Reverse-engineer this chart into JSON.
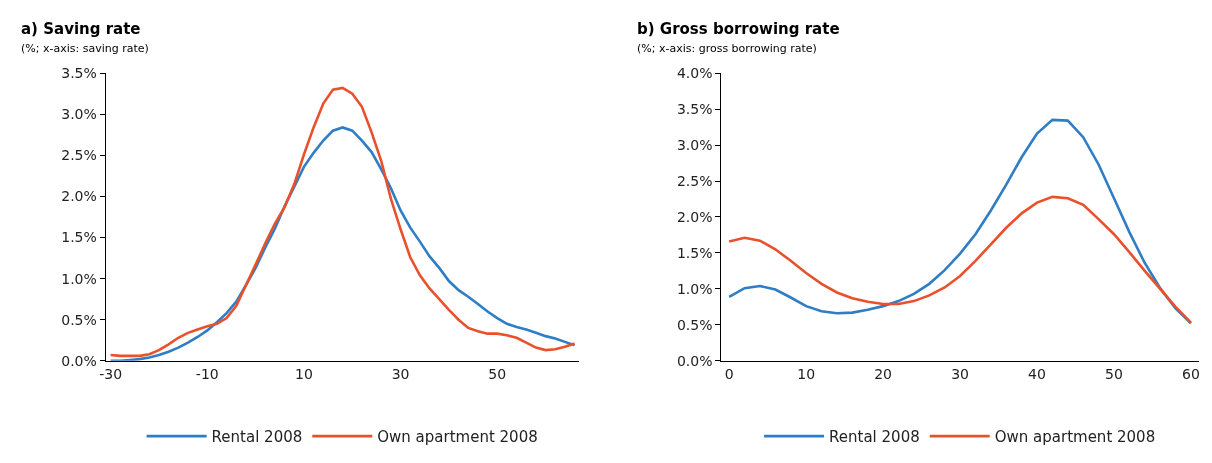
{
  "chart_data": [
    {
      "type": "line",
      "title": "a) Saving rate",
      "subtitle": "(%; x-axis: saving rate)",
      "x": [
        -30,
        -28,
        -26,
        -24,
        -22,
        -20,
        -18,
        -16,
        -14,
        -12,
        -10,
        -8,
        -6,
        -4,
        -2,
        0,
        2,
        4,
        6,
        8,
        10,
        12,
        14,
        16,
        18,
        20,
        22,
        24,
        26,
        28,
        30,
        32,
        34,
        36,
        38,
        40,
        42,
        44,
        46,
        48,
        50,
        52,
        54,
        56,
        58,
        60,
        62,
        64,
        66
      ],
      "series": [
        {
          "name": "Rental 2008",
          "color": "#2f7dc4",
          "values": [
            0.0,
            0.0,
            0.01,
            0.02,
            0.04,
            0.07,
            0.11,
            0.16,
            0.22,
            0.29,
            0.37,
            0.47,
            0.58,
            0.72,
            0.92,
            1.13,
            1.38,
            1.61,
            1.88,
            2.12,
            2.36,
            2.53,
            2.68,
            2.8,
            2.84,
            2.8,
            2.68,
            2.54,
            2.33,
            2.1,
            1.83,
            1.62,
            1.45,
            1.27,
            1.13,
            0.97,
            0.86,
            0.78,
            0.69,
            0.6,
            0.52,
            0.45,
            0.41,
            0.38,
            0.34,
            0.3,
            0.27,
            0.23,
            0.19
          ]
        },
        {
          "name": "Own apartment 2008",
          "color": "#e9502c",
          "values": [
            0.07,
            0.06,
            0.06,
            0.06,
            0.08,
            0.13,
            0.2,
            0.28,
            0.34,
            0.38,
            0.42,
            0.45,
            0.52,
            0.67,
            0.92,
            1.17,
            1.43,
            1.67,
            1.87,
            2.15,
            2.51,
            2.84,
            3.13,
            3.3,
            3.32,
            3.25,
            3.09,
            2.78,
            2.43,
            1.97,
            1.6,
            1.26,
            1.04,
            0.88,
            0.75,
            0.62,
            0.5,
            0.4,
            0.36,
            0.33,
            0.33,
            0.31,
            0.28,
            0.22,
            0.16,
            0.13,
            0.14,
            0.17,
            0.21
          ]
        }
      ],
      "xlim": [
        -31,
        67
      ],
      "xticks": [
        -30,
        -10,
        10,
        30,
        50
      ],
      "ylim": [
        0,
        3.5
      ],
      "yticks": [
        {
          "value": 0,
          "label": "0.0%"
        },
        {
          "value": 0.5,
          "label": "0.5%"
        },
        {
          "value": 1,
          "label": "1.0%"
        },
        {
          "value": 1.5,
          "label": "1.5%"
        },
        {
          "value": 2,
          "label": "2.0%"
        },
        {
          "value": 2.5,
          "label": "2.5%"
        },
        {
          "value": 3,
          "label": "3.0%"
        },
        {
          "value": 3.5,
          "label": "3.5%"
        }
      ],
      "legend": "bottom",
      "marker": "none",
      "line_style": "solid"
    },
    {
      "type": "line",
      "title": "b) Gross borrowing rate",
      "subtitle": "(%; x-axis: gross borrowing rate)",
      "x": [
        0,
        2,
        4,
        6,
        8,
        10,
        12,
        14,
        16,
        18,
        20,
        22,
        24,
        26,
        28,
        30,
        32,
        34,
        36,
        38,
        40,
        42,
        44,
        46,
        48,
        50,
        52,
        54,
        56,
        58,
        60
      ],
      "series": [
        {
          "name": "Rental 2008",
          "color": "#2f7dc4",
          "values": [
            0.89,
            1.01,
            1.04,
            0.99,
            0.88,
            0.76,
            0.69,
            0.66,
            0.67,
            0.71,
            0.76,
            0.83,
            0.93,
            1.07,
            1.26,
            1.49,
            1.76,
            2.09,
            2.45,
            2.83,
            3.16,
            3.35,
            3.34,
            3.11,
            2.73,
            2.26,
            1.79,
            1.36,
            1.01,
            0.73,
            0.52
          ]
        },
        {
          "name": "Own apartment 2008",
          "color": "#e9502c",
          "values": [
            1.66,
            1.71,
            1.67,
            1.55,
            1.39,
            1.22,
            1.07,
            0.95,
            0.87,
            0.82,
            0.79,
            0.79,
            0.83,
            0.91,
            1.02,
            1.18,
            1.39,
            1.62,
            1.85,
            2.05,
            2.2,
            2.28,
            2.26,
            2.17,
            1.97,
            1.76,
            1.51,
            1.25,
            1.0,
            0.75,
            0.53
          ]
        }
      ],
      "xlim": [
        -1,
        61
      ],
      "xticks": [
        0,
        10,
        20,
        30,
        40,
        50,
        60
      ],
      "ylim": [
        0,
        4.0
      ],
      "yticks": [
        {
          "value": 0,
          "label": "0.0%"
        },
        {
          "value": 0.5,
          "label": "0.5%"
        },
        {
          "value": 1,
          "label": "1.0%"
        },
        {
          "value": 1.5,
          "label": "1.5%"
        },
        {
          "value": 2,
          "label": "2.0%"
        },
        {
          "value": 2.5,
          "label": "2.5%"
        },
        {
          "value": 3,
          "label": "3.0%"
        },
        {
          "value": 3.5,
          "label": "3.5%"
        },
        {
          "value": 4,
          "label": "4.0%"
        }
      ],
      "legend": "bottom",
      "marker": "none",
      "line_style": "solid"
    }
  ]
}
